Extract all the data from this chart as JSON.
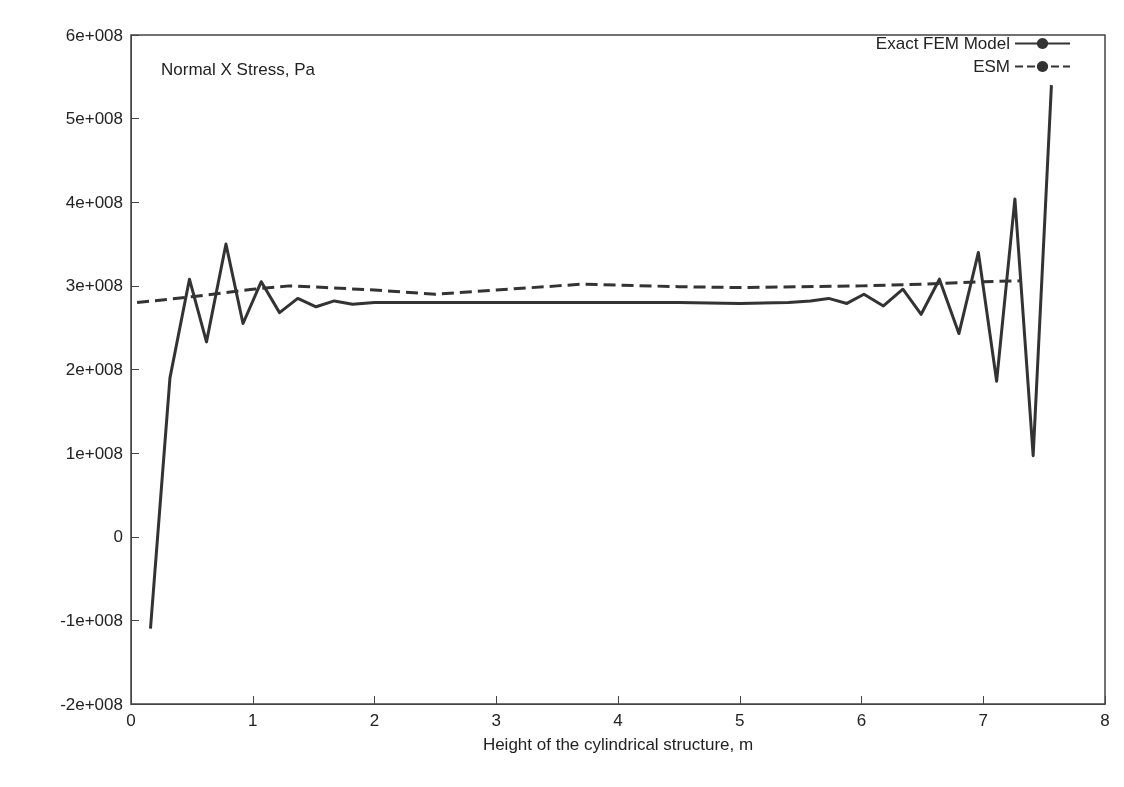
{
  "chart_data": {
    "type": "line",
    "title": "Normal X Stress, Pa",
    "xlabel": "Height of the cylindrical structure, m",
    "xlim": [
      0,
      8
    ],
    "xticks": [
      0,
      1,
      2,
      3,
      4,
      5,
      6,
      7,
      8
    ],
    "ylim": [
      -200000000,
      600000000
    ],
    "yticks": [
      {
        "value": -200000000,
        "label": "-2e+008"
      },
      {
        "value": -100000000,
        "label": "-1e+008"
      },
      {
        "value": 0,
        "label": "0"
      },
      {
        "value": 100000000,
        "label": "1e+008"
      },
      {
        "value": 200000000,
        "label": "2e+008"
      },
      {
        "value": 300000000,
        "label": "3e+008"
      },
      {
        "value": 400000000,
        "label": "4e+008"
      },
      {
        "value": 500000000,
        "label": "5e+008"
      },
      {
        "value": 600000000,
        "label": "6e+008"
      }
    ],
    "grid": false,
    "legend": "top right",
    "marker": "none",
    "series": [
      {
        "name": "Exact FEM Model",
        "color": "#333333",
        "line_style": "solid",
        "x": [
          0.16,
          0.32,
          0.48,
          0.62,
          0.78,
          0.92,
          1.07,
          1.22,
          1.37,
          1.52,
          1.67,
          1.82,
          2,
          2.5,
          3,
          3.5,
          4,
          4.5,
          5,
          5.4,
          5.58,
          5.73,
          5.88,
          6.02,
          6.18,
          6.34,
          6.49,
          6.64,
          6.8,
          6.96,
          7.11,
          7.26,
          7.41,
          7.56
        ],
        "values": [
          -110000000,
          190000000,
          308000000,
          233000000,
          350000000,
          255000000,
          305000000,
          268000000,
          285000000,
          275000000,
          282000000,
          278000000,
          280000000,
          280000000,
          280000000,
          280000000,
          280000000,
          280000000,
          279000000,
          280000000,
          282000000,
          285000000,
          279000000,
          290000000,
          276000000,
          296000000,
          266000000,
          308000000,
          243000000,
          340000000,
          186000000,
          404000000,
          97000000,
          540000000
        ]
      },
      {
        "name": "ESM",
        "color": "#333333",
        "line_style": "dashed",
        "x": [
          0.05,
          0.5,
          1,
          1.3,
          1.6,
          2,
          2.5,
          3,
          3.5,
          3.7,
          4,
          4.5,
          5,
          5.5,
          6,
          6.5,
          7,
          7.3
        ],
        "values": [
          280000000,
          287000000,
          296000000,
          300000000,
          298000000,
          295000000,
          290000000,
          295000000,
          300000000,
          302000000,
          301000000,
          299000000,
          298000000,
          299000000,
          300000000,
          302000000,
          305000000,
          306000000
        ]
      }
    ]
  }
}
